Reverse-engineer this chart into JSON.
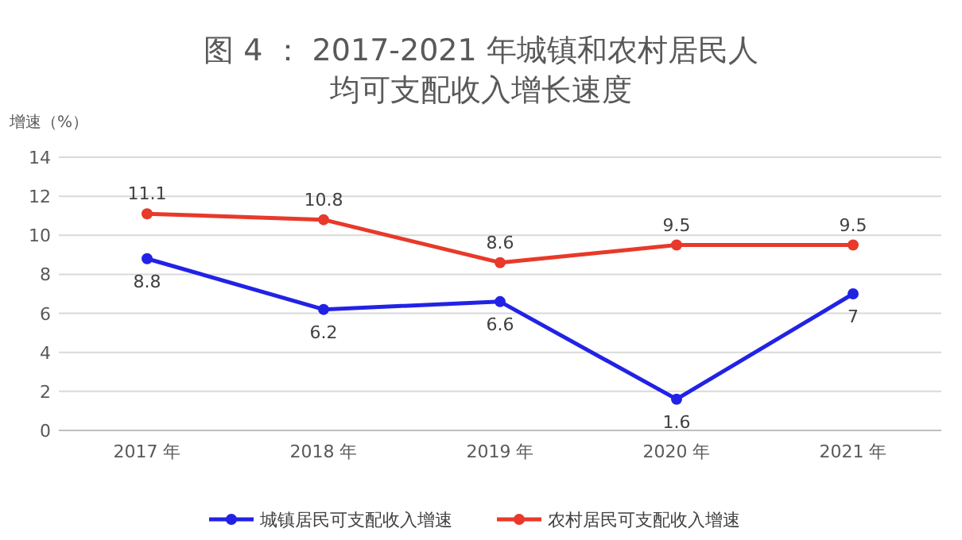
{
  "chart_data": {
    "type": "line",
    "title": "图 4 ： 2017-2021 年城镇和农村居民人均可支配收入增长速度",
    "ylabel": "增速（%）",
    "categories": [
      "2017 年",
      "2018 年",
      "2019 年",
      "2020 年",
      "2021 年"
    ],
    "series": [
      {
        "name": "城镇居民可支配收入增速",
        "color": "#2222e6",
        "values": [
          8.8,
          6.2,
          6.6,
          1.6,
          7
        ]
      },
      {
        "name": "农村居民可支配收入增速",
        "color": "#e8392a",
        "values": [
          11.1,
          10.8,
          8.6,
          9.5,
          9.5
        ]
      }
    ],
    "ylim": [
      0,
      14
    ],
    "yticks": [
      0,
      2,
      4,
      6,
      8,
      10,
      12,
      14
    ],
    "grid": "y",
    "legend": "bottom",
    "marker": "circle",
    "line_style": "solid",
    "data_labels": true
  }
}
